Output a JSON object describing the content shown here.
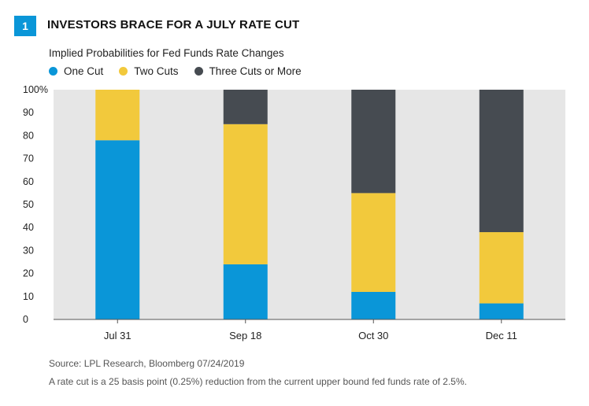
{
  "figure_number": "1",
  "title": "INVESTORS BRACE FOR A JULY RATE CUT",
  "subtitle": "Implied Probabilities for Fed Funds Rate Changes",
  "source": "Source: LPL Research, Bloomberg 07/24/2019",
  "footnote": "A rate cut is a 25 basis point (0.25%) reduction from the current upper bound fed funds rate of 2.5%.",
  "colors": {
    "one_cut": "#0a96d8",
    "two_cuts": "#f2c93c",
    "three_cuts": "#464b51",
    "plot_background": "#e6e6e6",
    "badge": "#0a96d8"
  },
  "chart_data": {
    "type": "bar",
    "stacked": true,
    "categories": [
      "Jul 31",
      "Sep 18",
      "Oct 30",
      "Dec 11"
    ],
    "series": [
      {
        "name": "One Cut",
        "color": "#0a96d8",
        "values": [
          78,
          24,
          12,
          7
        ]
      },
      {
        "name": "Two Cuts",
        "color": "#f2c93c",
        "values": [
          22,
          61,
          43,
          31
        ]
      },
      {
        "name": "Three Cuts or More",
        "color": "#464b51",
        "values": [
          0,
          15,
          45,
          62
        ]
      }
    ],
    "ylim": [
      0,
      100
    ],
    "yticks": [
      "0",
      "10",
      "20",
      "30",
      "40",
      "50",
      "60",
      "70",
      "80",
      "90",
      "100%"
    ],
    "grid": false,
    "legend_position": "top-left"
  }
}
